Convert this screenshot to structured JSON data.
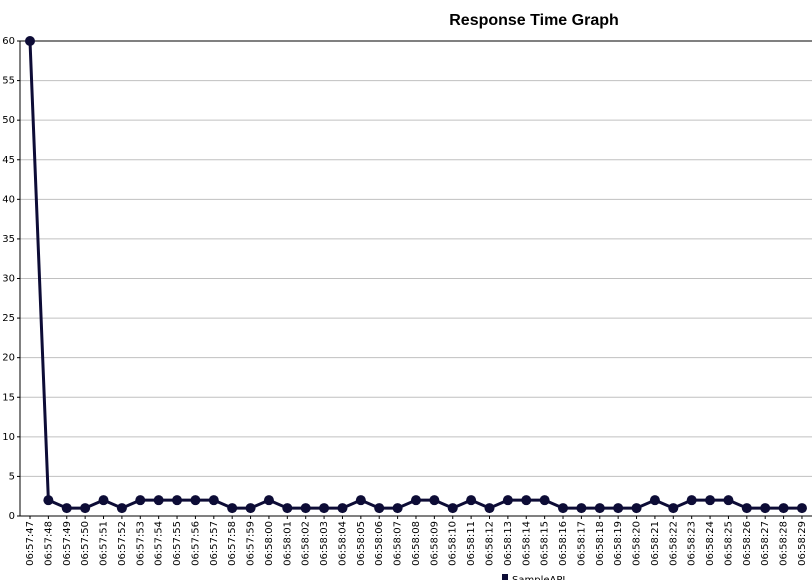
{
  "chart_data": {
    "type": "line",
    "title": "Response Time Graph",
    "categories": [
      "06:57:47",
      "06:57:48",
      "06:57:49",
      "06:57:50",
      "06:57:51",
      "06:57:52",
      "06:57:53",
      "06:57:54",
      "06:57:55",
      "06:57:56",
      "06:57:57",
      "06:57:58",
      "06:57:59",
      "06:58:00",
      "06:58:01",
      "06:58:02",
      "06:58:03",
      "06:58:04",
      "06:58:05",
      "06:58:06",
      "06:58:07",
      "06:58:08",
      "06:58:09",
      "06:58:10",
      "06:58:11",
      "06:58:12",
      "06:58:13",
      "06:58:14",
      "06:58:15",
      "06:58:16",
      "06:58:17",
      "06:58:18",
      "06:58:19",
      "06:58:20",
      "06:58:21",
      "06:58:22",
      "06:58:23",
      "06:58:24",
      "06:58:25",
      "06:58:26",
      "06:58:27",
      "06:58:28",
      "06:58:29"
    ],
    "series": [
      {
        "name": "SampleAPI",
        "color": "#0d0c36",
        "values": [
          60,
          2,
          1,
          1,
          2,
          1,
          2,
          2,
          2,
          2,
          2,
          1,
          1,
          2,
          1,
          1,
          1,
          1,
          2,
          1,
          1,
          2,
          2,
          1,
          2,
          1,
          2,
          2,
          2,
          1,
          1,
          1,
          1,
          1,
          2,
          1,
          2,
          2,
          2,
          1,
          1,
          1,
          1
        ]
      }
    ],
    "ylim": [
      0,
      60
    ],
    "yticks": [
      0,
      5,
      10,
      15,
      20,
      25,
      30,
      35,
      40,
      45,
      50,
      55,
      60
    ],
    "grid": true
  }
}
